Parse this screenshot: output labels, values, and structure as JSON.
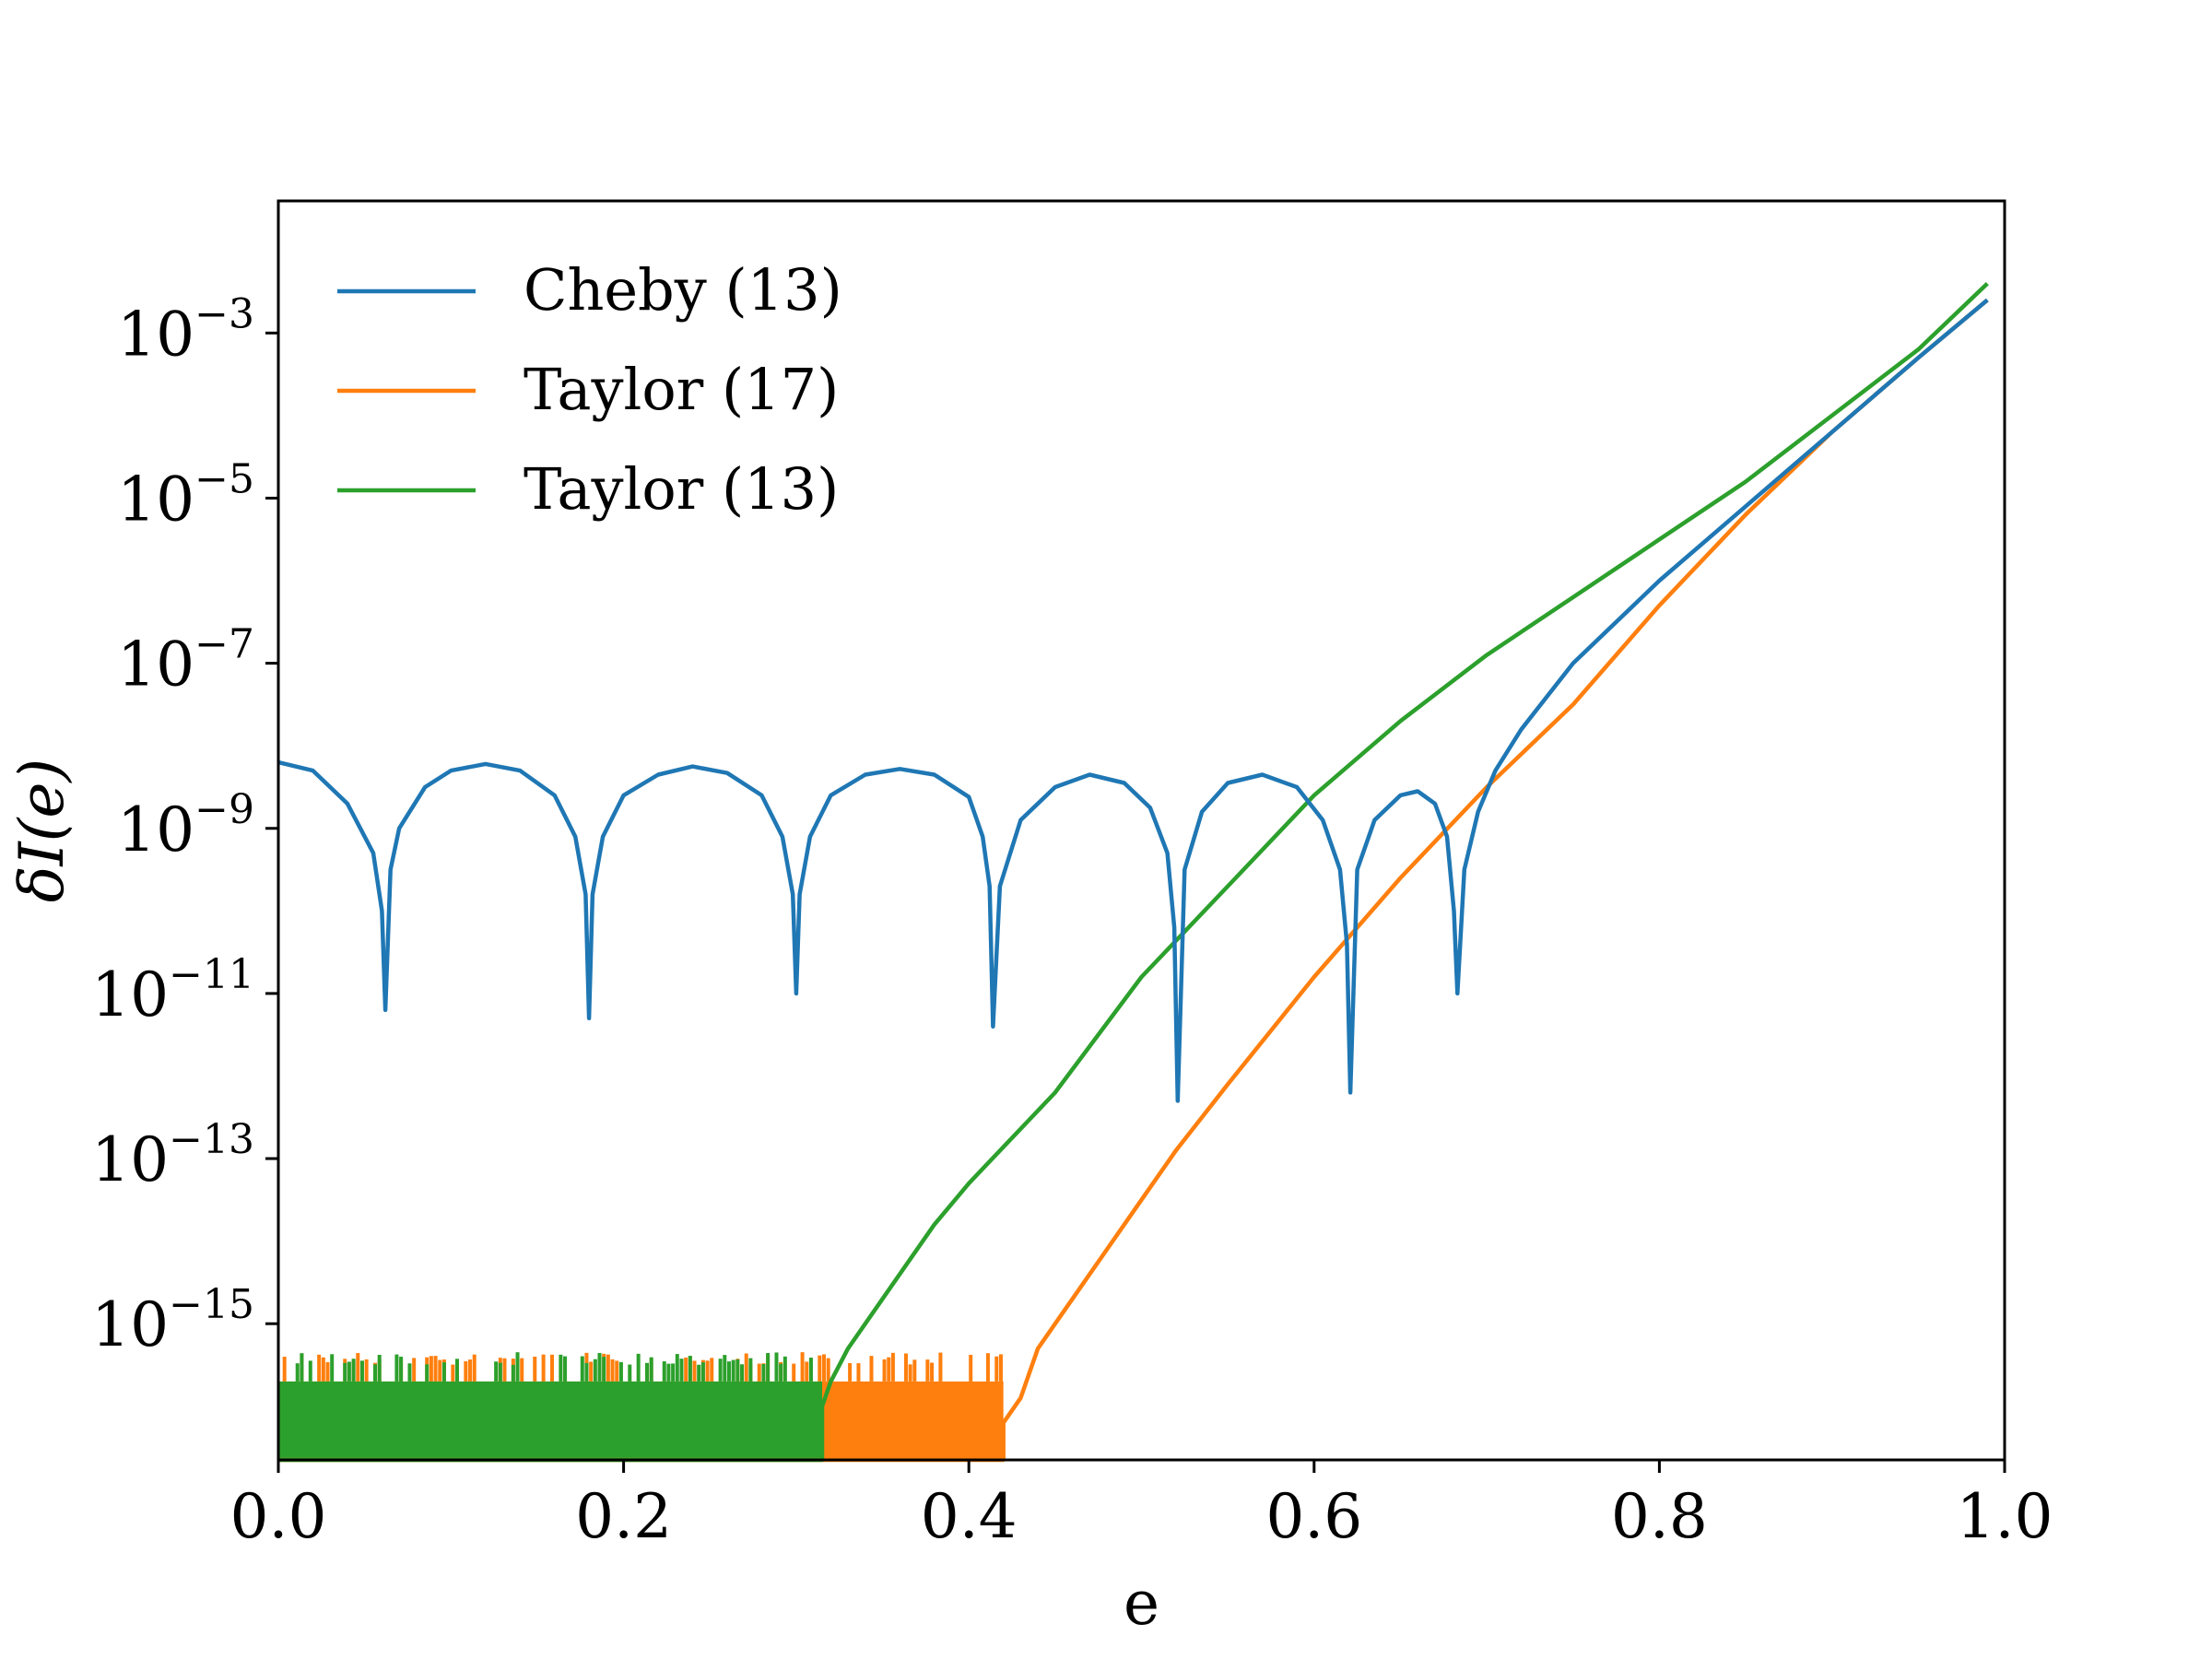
{
  "chart_data": {
    "type": "line",
    "title": "",
    "xlabel": "e",
    "ylabel": "δI(e)",
    "xlim": [
      0.0,
      1.0
    ],
    "y_scale": "log",
    "ylim_log10": [
      -16.65,
      -1.4
    ],
    "grid": false,
    "legend_position": "top-left",
    "x_ticks": [
      {
        "value": 0.0,
        "label": "0.0"
      },
      {
        "value": 0.2,
        "label": "0.2"
      },
      {
        "value": 0.4,
        "label": "0.4"
      },
      {
        "value": 0.6,
        "label": "0.6"
      },
      {
        "value": 0.8,
        "label": "0.8"
      },
      {
        "value": 1.0,
        "label": "1.0"
      }
    ],
    "y_ticks": [
      {
        "exp": -3,
        "base": "10",
        "sup": "−3"
      },
      {
        "exp": -5,
        "base": "10",
        "sup": "−5"
      },
      {
        "exp": -7,
        "base": "10",
        "sup": "−7"
      },
      {
        "exp": -9,
        "base": "10",
        "sup": "−9"
      },
      {
        "exp": -11,
        "base": "10",
        "sup": "−11"
      },
      {
        "exp": -13,
        "base": "10",
        "sup": "−13"
      },
      {
        "exp": -15,
        "base": "10",
        "sup": "−15"
      }
    ],
    "series": [
      {
        "name": "Cheby (13)",
        "color": "#1f77b4",
        "x": [
          0.0,
          0.02,
          0.04,
          0.055,
          0.06,
          0.062,
          0.065,
          0.07,
          0.085,
          0.1,
          0.12,
          0.14,
          0.16,
          0.172,
          0.178,
          0.18,
          0.182,
          0.188,
          0.2,
          0.22,
          0.24,
          0.26,
          0.28,
          0.292,
          0.298,
          0.3,
          0.302,
          0.308,
          0.32,
          0.34,
          0.36,
          0.38,
          0.4,
          0.408,
          0.412,
          0.414,
          0.418,
          0.43,
          0.45,
          0.47,
          0.49,
          0.505,
          0.515,
          0.519,
          0.521,
          0.525,
          0.535,
          0.55,
          0.57,
          0.59,
          0.605,
          0.615,
          0.619,
          0.621,
          0.625,
          0.635,
          0.65,
          0.66,
          0.67,
          0.677,
          0.681,
          0.683,
          0.687,
          0.695,
          0.705,
          0.72,
          0.75,
          0.8,
          0.85,
          0.9,
          0.95,
          0.99
        ],
        "log10_y": [
          -8.2,
          -8.3,
          -8.7,
          -9.3,
          -10.0,
          -11.2,
          -9.5,
          -9.0,
          -8.5,
          -8.3,
          -8.22,
          -8.3,
          -8.6,
          -9.1,
          -9.8,
          -11.3,
          -9.8,
          -9.1,
          -8.6,
          -8.35,
          -8.25,
          -8.33,
          -8.6,
          -9.1,
          -9.8,
          -11.0,
          -9.8,
          -9.1,
          -8.6,
          -8.35,
          -8.28,
          -8.35,
          -8.62,
          -9.1,
          -9.7,
          -11.4,
          -9.7,
          -8.9,
          -8.5,
          -8.35,
          -8.45,
          -8.75,
          -9.3,
          -10.2,
          -12.3,
          -9.5,
          -8.8,
          -8.45,
          -8.35,
          -8.5,
          -8.9,
          -9.5,
          -10.4,
          -12.2,
          -9.5,
          -8.9,
          -8.6,
          -8.55,
          -8.7,
          -9.1,
          -10.0,
          -11.0,
          -9.5,
          -8.8,
          -8.3,
          -7.8,
          -7.0,
          -6.0,
          -5.1,
          -4.2,
          -3.3,
          -2.6
        ]
      },
      {
        "name": "Taylor (17)",
        "color": "#ff7f0e",
        "x": [
          0.0,
          0.42,
          0.42,
          0.43,
          0.44,
          0.46,
          0.48,
          0.5,
          0.52,
          0.55,
          0.6,
          0.65,
          0.7,
          0.75,
          0.8,
          0.85,
          0.9,
          0.95,
          0.99
        ],
        "log10_y": [
          -16.65,
          -16.65,
          -16.2,
          -15.9,
          -15.3,
          -14.7,
          -14.1,
          -13.5,
          -12.9,
          -12.1,
          -10.8,
          -9.6,
          -8.5,
          -7.5,
          -6.3,
          -5.2,
          -4.2,
          -3.3,
          -2.6
        ],
        "noise_floor": {
          "x_start": 0.0,
          "x_end": 0.42,
          "log10_low": -16.65,
          "log10_high": -15.7
        }
      },
      {
        "name": "Taylor (13)",
        "color": "#2ca02c",
        "x": [
          0.0,
          0.315,
          0.315,
          0.32,
          0.33,
          0.35,
          0.38,
          0.4,
          0.45,
          0.5,
          0.55,
          0.6,
          0.65,
          0.7,
          0.75,
          0.8,
          0.85,
          0.9,
          0.95,
          0.99
        ],
        "log10_y": [
          -16.65,
          -16.65,
          -16.0,
          -15.7,
          -15.3,
          -14.7,
          -13.8,
          -13.3,
          -12.2,
          -10.8,
          -9.7,
          -8.6,
          -7.7,
          -6.9,
          -6.2,
          -5.5,
          -4.8,
          -4.0,
          -3.2,
          -2.4
        ],
        "noise_floor": {
          "x_start": 0.0,
          "x_end": 0.315,
          "log10_low": -16.65,
          "log10_high": -15.7
        }
      }
    ]
  }
}
